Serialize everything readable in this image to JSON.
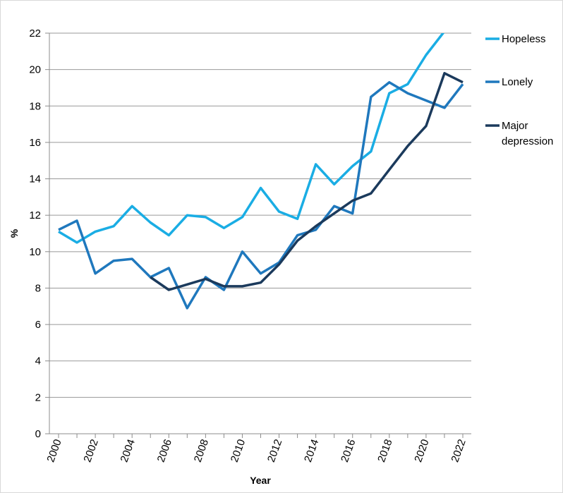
{
  "chart_data": {
    "type": "line",
    "xlabel": "Year",
    "ylabel": "%",
    "ylim": [
      0,
      22
    ],
    "xlim": [
      2000,
      2022
    ],
    "yticks": [
      "0",
      "2",
      "4",
      "6",
      "8",
      "10",
      "12",
      "14",
      "16",
      "18",
      "20",
      "22"
    ],
    "xticks": [
      "2000",
      "2002",
      "2004",
      "2006",
      "2008",
      "2010",
      "2012",
      "2014",
      "2016",
      "2018",
      "2020",
      "2022"
    ],
    "grid": true,
    "legend_position": "right",
    "x": [
      2000,
      2001,
      2002,
      2003,
      2004,
      2005,
      2006,
      2007,
      2008,
      2009,
      2010,
      2011,
      2012,
      2013,
      2014,
      2015,
      2016,
      2017,
      2018,
      2019,
      2020,
      2021,
      2022
    ],
    "series": [
      {
        "name": "Hopeless",
        "color": "#1aade4",
        "values": [
          11.1,
          10.5,
          11.1,
          11.4,
          12.5,
          11.6,
          10.9,
          12.0,
          11.9,
          11.3,
          11.9,
          13.5,
          12.2,
          11.8,
          14.8,
          13.7,
          14.7,
          15.5,
          18.7,
          19.2,
          20.8,
          22.1,
          null
        ]
      },
      {
        "name": "Lonely",
        "color": "#1f78bd",
        "values": [
          11.2,
          11.7,
          8.8,
          9.5,
          9.6,
          8.6,
          9.1,
          6.9,
          8.6,
          7.9,
          10.0,
          8.8,
          9.4,
          10.9,
          11.2,
          12.5,
          12.1,
          18.5,
          19.3,
          18.7,
          18.3,
          17.9,
          19.2
        ]
      },
      {
        "name": "Major depression",
        "color": "#1b3a5c",
        "values": [
          null,
          null,
          null,
          null,
          null,
          8.6,
          7.9,
          8.2,
          8.5,
          8.1,
          8.1,
          8.3,
          9.3,
          10.6,
          11.4,
          12.1,
          12.8,
          13.2,
          14.5,
          15.8,
          16.9,
          19.8,
          19.3
        ]
      }
    ]
  },
  "legend_lines": {
    "hopeless": [
      "Hopeless"
    ],
    "lonely": [
      "Lonely"
    ],
    "major_depression": [
      "Major",
      "depression"
    ]
  }
}
